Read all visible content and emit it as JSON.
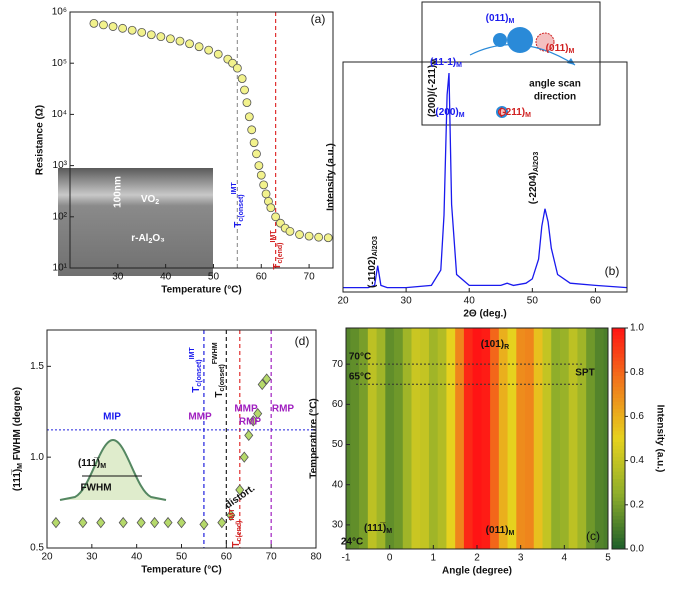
{
  "chart_data": [
    {
      "type": "scatter",
      "panel": "(a)",
      "xlabel": "Temperature (°C)",
      "ylabel": "Resistance (Ω)",
      "xlim": [
        20,
        75
      ],
      "xticks": [
        30,
        40,
        50,
        60,
        70
      ],
      "ylim": [
        10,
        1000000
      ],
      "log_y": true,
      "yticks": [
        {
          "value": 10,
          "label": "10¹"
        },
        {
          "value": 100,
          "label": "10²"
        },
        {
          "value": 1000,
          "label": "10³"
        },
        {
          "value": 10000,
          "label": "10⁴"
        },
        {
          "value": 100000,
          "label": "10⁵"
        },
        {
          "value": 1000000,
          "label": "10⁶"
        }
      ],
      "marker": "circle",
      "color": "#f2f28c",
      "x": [
        25,
        27,
        29,
        31,
        33,
        35,
        37,
        39,
        41,
        43,
        45,
        47,
        49,
        51,
        53,
        54,
        55,
        56,
        56.5,
        57,
        57.5,
        58,
        58.5,
        59,
        59.5,
        60,
        60.5,
        61,
        61.5,
        62,
        63,
        64,
        65,
        66,
        68,
        70,
        72,
        74
      ],
      "values": [
        600000,
        560000,
        520000,
        480000,
        440000,
        400000,
        360000,
        330000,
        300000,
        270000,
        240000,
        210000,
        180000,
        150000,
        120000,
        100000,
        80000,
        50000,
        30000,
        17000,
        9000,
        5000,
        2800,
        1700,
        1000,
        650,
        420,
        280,
        200,
        150,
        100,
        75,
        60,
        52,
        45,
        42,
        40,
        39
      ],
      "vlines": [
        {
          "x": 55,
          "color": "#999999"
        },
        {
          "x": 63,
          "color": "#e03030"
        }
      ],
      "annotations": [
        {
          "text": "T",
          "sub": "c(onset)",
          "sup": "IMT"
        },
        {
          "text": "T",
          "sub": "c(end)",
          "sup": "IMT"
        },
        "100nm",
        {
          "text": "VO",
          "sub": "2"
        },
        {
          "text": "r-Al",
          "sub": "2",
          "after": "O₃"
        }
      ]
    },
    {
      "type": "line",
      "panel": "(b)",
      "xlabel": "2Θ (deg.)",
      "ylabel": "Intensity (a.u.)",
      "xlim": [
        20,
        65
      ],
      "xticks": [
        20,
        30,
        40,
        50,
        60
      ],
      "ylim": [
        0,
        105
      ],
      "color": "#1a1aee",
      "x": [
        20,
        24,
        25,
        25.5,
        26,
        27,
        30,
        34,
        35.5,
        36,
        36.5,
        36.8,
        37.2,
        38,
        40,
        45,
        46,
        47,
        49,
        50,
        51,
        51.5,
        52,
        52.5,
        53,
        54,
        56,
        60,
        65
      ],
      "values": [
        2,
        2,
        3,
        12,
        3,
        2,
        2,
        3,
        10,
        35,
        90,
        100,
        40,
        8,
        3,
        3,
        4,
        3,
        4,
        6,
        15,
        30,
        38,
        32,
        20,
        8,
        4,
        3,
        2
      ],
      "annotations": [
        {
          "text": "(-1102)",
          "sub": "Al2O3"
        },
        {
          "text": "(200)/(-211)",
          "sub": "M"
        },
        {
          "text": "(-2204)",
          "sub": "Al2O3"
        },
        {
          "text": "(011)",
          "sub": "M"
        },
        {
          "text": "(11-1)",
          "sub": "M"
        },
        {
          "text": "(011)",
          "sub": "M"
        },
        "angle scan",
        "direction",
        {
          "text": "(200)",
          "sub": "M"
        },
        {
          "text": "(-211)",
          "sub": "M"
        }
      ]
    },
    {
      "type": "heatmap",
      "panel": "(c)",
      "xlabel": "Angle (degree)",
      "ylabel": "Temperature (°C)",
      "colorbar_label": "Intensity (a.u.)",
      "xlim": [
        -1,
        5
      ],
      "xticks": [
        -1,
        0,
        1,
        2,
        3,
        4,
        5
      ],
      "ylim": [
        24,
        79
      ],
      "yticks": [
        30,
        40,
        50,
        60,
        70
      ],
      "clim": [
        0,
        1
      ],
      "cticks": [
        {
          "value": 0,
          "label": "0.0"
        },
        0.2,
        0.4,
        0.6,
        0.8,
        {
          "value": 1,
          "label": "1.0"
        }
      ],
      "colorscale": [
        "#1d5e2b",
        "#8fae2a",
        "#e6d21e",
        "#f07a1c",
        "#ff1414"
      ],
      "x": [
        -1,
        -0.8,
        -0.6,
        -0.4,
        -0.2,
        0,
        0.2,
        0.4,
        0.6,
        0.8,
        1,
        1.2,
        1.4,
        1.6,
        1.8,
        2,
        2.2,
        2.4,
        2.6,
        2.8,
        3,
        3.2,
        3.4,
        3.6,
        3.8,
        4,
        4.2,
        4.4,
        4.6,
        4.8,
        5
      ],
      "values": [
        0.12,
        0.15,
        0.2,
        0.38,
        0.3,
        0.15,
        0.18,
        0.3,
        0.42,
        0.4,
        0.3,
        0.35,
        0.5,
        0.72,
        0.95,
        1,
        0.98,
        0.8,
        0.6,
        0.5,
        0.7,
        0.72,
        0.55,
        0.4,
        0.25,
        0.28,
        0.38,
        0.3,
        0.18,
        0.12,
        0.1
      ],
      "hlines": [
        {
          "y": 70,
          "color": "#333333"
        },
        {
          "y": 65,
          "color": "#333333"
        }
      ],
      "annotations": [
        {
          "text": "(101)",
          "sub": "R"
        },
        "70°C",
        "65°C",
        "SPT",
        {
          "text": "(111̅)",
          "sub": "M"
        },
        {
          "text": "(011)",
          "sub": "M"
        },
        "24°C"
      ]
    },
    {
      "type": "scatter",
      "panel": "(d)",
      "xlabel": "Temperature (°C)",
      "ylabel": {
        "text": "(111̅)",
        "sub": "M",
        "after": " FWHM (degree)"
      },
      "xlim": [
        20,
        80
      ],
      "xticks": [
        20,
        30,
        40,
        50,
        60,
        70,
        80
      ],
      "ylim": [
        0.5,
        1.7
      ],
      "yticks": [
        0.5,
        {
          "value": 1,
          "label": "1.0"
        },
        1.5
      ],
      "marker": "diamond",
      "color": "#b5d96a",
      "x": [
        22,
        28,
        32,
        37,
        41,
        44,
        47,
        50,
        55,
        59,
        61,
        63,
        64,
        65,
        66,
        67,
        68,
        69
      ],
      "values": [
        0.64,
        0.64,
        0.64,
        0.64,
        0.64,
        0.64,
        0.64,
        0.64,
        0.63,
        0.64,
        0.68,
        0.82,
        1.0,
        1.12,
        1.2,
        1.24,
        1.4,
        1.43
      ],
      "vlines": [
        {
          "x": 55,
          "color": "#2020dd"
        },
        {
          "x": 60,
          "color": "#222222"
        },
        {
          "x": 63,
          "color": "#e03030"
        },
        {
          "x": 70,
          "color": "#a020c0"
        }
      ],
      "hlines": [
        {
          "y": 1.15,
          "color": "#2020dd"
        }
      ],
      "annotations": [
        "MIP",
        "MMP",
        "MMP",
        "RMP",
        "RMP",
        "distort.",
        {
          "text": "T",
          "sub": "c(onset)",
          "sup": "IMT"
        },
        {
          "text": "T",
          "sub": "c(onset)",
          "sup": "FWHM"
        },
        {
          "text": "T",
          "sub": "c(end)",
          "sup": "IMT"
        },
        {
          "text": "(111̅)",
          "sub": "M"
        },
        "FWHM"
      ]
    }
  ]
}
